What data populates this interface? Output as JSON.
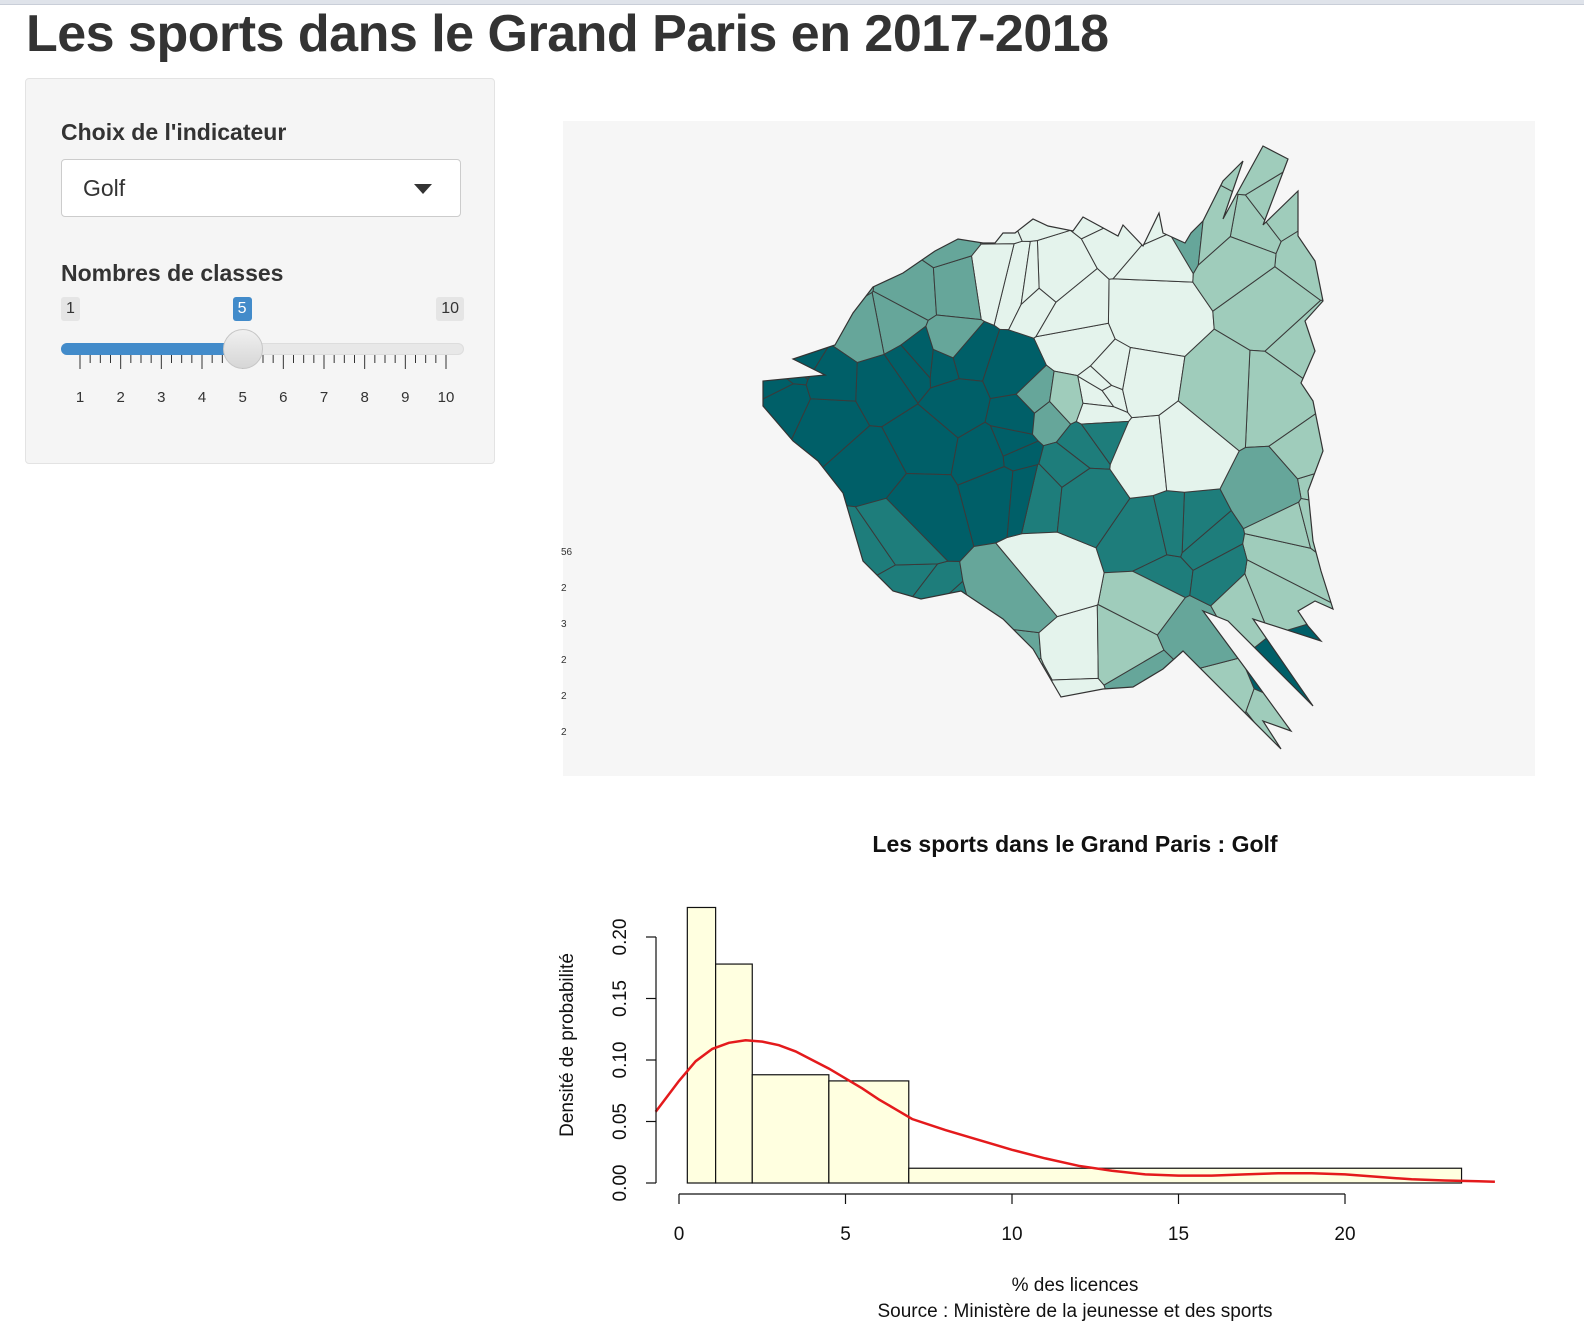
{
  "page": {
    "title": "Les sports dans le Grand Paris en 2017-2018"
  },
  "sidebar": {
    "indicator_label": "Choix de l'indicateur",
    "indicator_value": "Golf",
    "classes_label": "Nombres de classes",
    "slider": {
      "min": 1,
      "max": 10,
      "value": 5,
      "ticks": [
        "1",
        "2",
        "3",
        "4",
        "5",
        "6",
        "7",
        "8",
        "9",
        "10"
      ]
    }
  },
  "map": {
    "palette": [
      "#e4f3ec",
      "#9fccbb",
      "#66a69a",
      "#1e7d7b",
      "#005f68"
    ],
    "legend_fragments": [
      "56",
      "2",
      "3",
      "2",
      "2",
      "2"
    ]
  },
  "chart_data": {
    "type": "bar",
    "title": "Les sports dans le Grand Paris :  Golf",
    "xlabel": "% des licences",
    "ylabel": "Densité de probabilité",
    "caption": "Source : Ministère de la jeunesse et des sports",
    "xlim": [
      0,
      24.5
    ],
    "ylim": [
      0,
      0.22
    ],
    "xticks": [
      "0",
      "5",
      "10",
      "15",
      "20"
    ],
    "yticks": [
      "0.00",
      "0.05",
      "0.10",
      "0.15",
      "0.20"
    ],
    "bins": [
      {
        "x0": 0.25,
        "x1": 1.1,
        "density": 0.224
      },
      {
        "x0": 1.1,
        "x1": 2.2,
        "density": 0.178
      },
      {
        "x0": 2.2,
        "x1": 4.5,
        "density": 0.088
      },
      {
        "x0": 4.5,
        "x1": 6.9,
        "density": 0.083
      },
      {
        "x0": 6.9,
        "x1": 23.5,
        "density": 0.012
      }
    ],
    "density_curve": {
      "x": [
        -0.7,
        0,
        0.5,
        1,
        1.5,
        2,
        2.5,
        3,
        3.5,
        4,
        4.5,
        5,
        5.5,
        6,
        6.5,
        7,
        8,
        9,
        10,
        11,
        12,
        13,
        14,
        15,
        16,
        17,
        18,
        18.5,
        19,
        20,
        21,
        22,
        23,
        24,
        24.5
      ],
      "y": [
        0.058,
        0.083,
        0.099,
        0.109,
        0.114,
        0.116,
        0.115,
        0.112,
        0.107,
        0.1,
        0.093,
        0.085,
        0.077,
        0.068,
        0.06,
        0.052,
        0.043,
        0.035,
        0.027,
        0.02,
        0.014,
        0.01,
        0.007,
        0.006,
        0.006,
        0.007,
        0.008,
        0.008,
        0.008,
        0.007,
        0.005,
        0.003,
        0.002,
        0.0015,
        0.001
      ]
    },
    "bar_fill": "#ffffe0",
    "curve_color": "#e41a1c"
  }
}
